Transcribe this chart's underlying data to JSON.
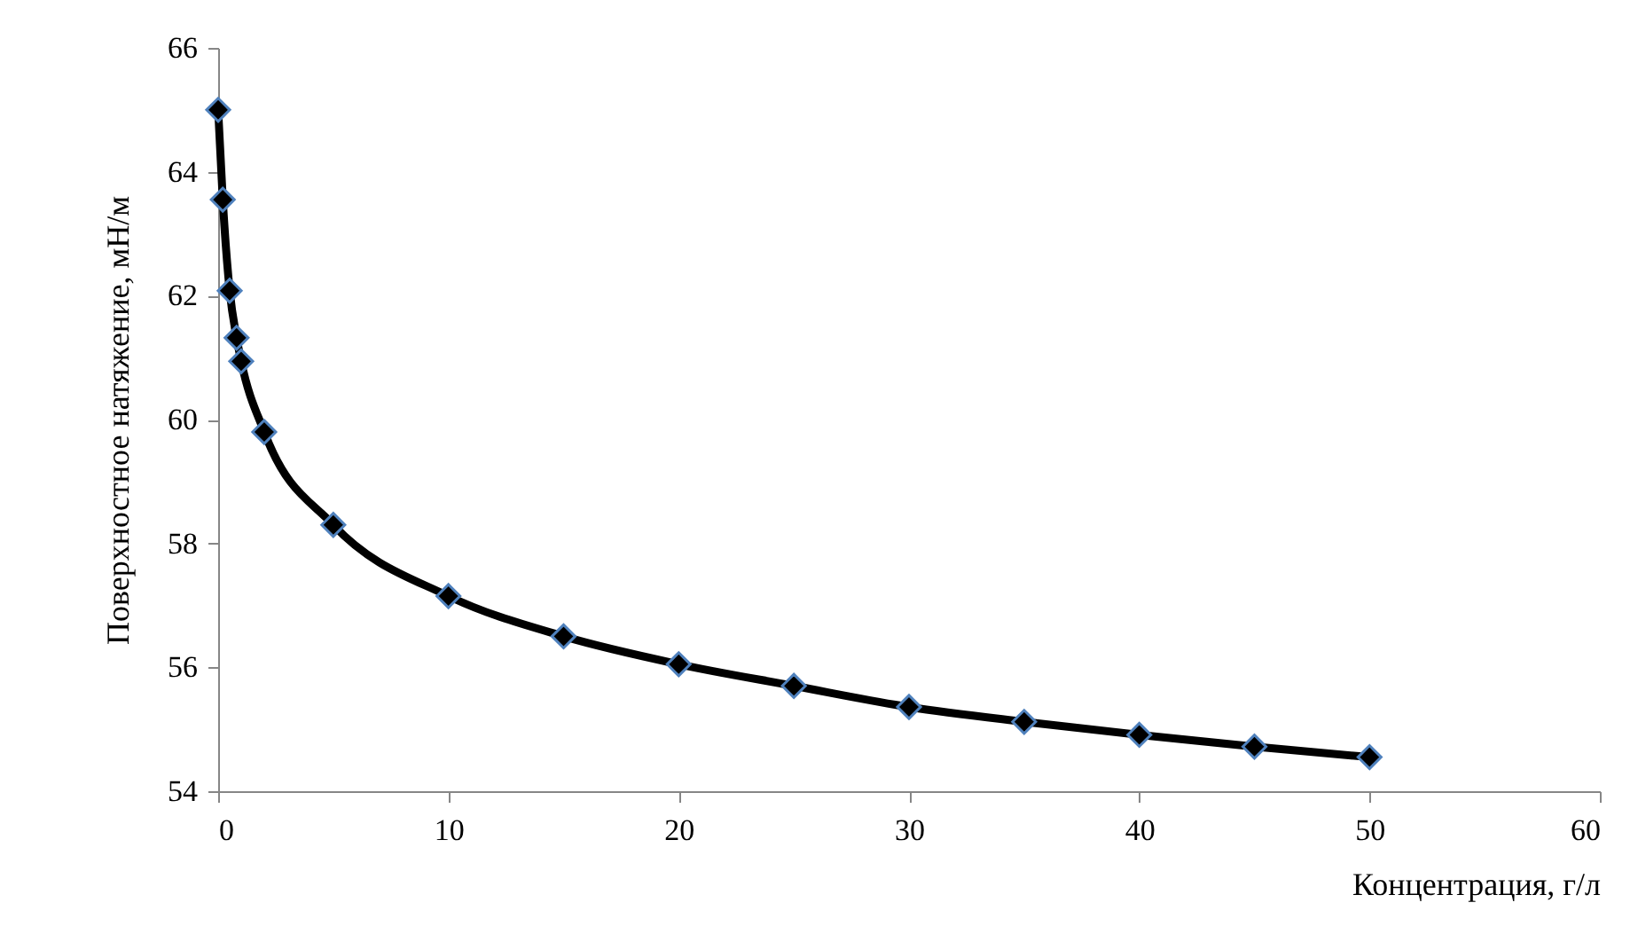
{
  "chart_data": {
    "type": "line",
    "xlabel": "Концентрация, г/л",
    "ylabel": "Поверхностное натяжение, мН/м",
    "series": [
      {
        "color": "#000000",
        "x": [
          0,
          0.2,
          0.5,
          0.8,
          1,
          2,
          5,
          10,
          15,
          20,
          25,
          30,
          35,
          40,
          45,
          50
        ],
        "values": [
          65.0,
          63.55,
          62.08,
          61.32,
          60.94,
          59.8,
          58.3,
          57.15,
          56.5,
          56.05,
          55.7,
          55.36,
          55.12,
          54.91,
          54.72,
          54.55
        ]
      }
    ],
    "xlim": [
      0,
      60
    ],
    "xticks": [
      0,
      10,
      20,
      30,
      40,
      50,
      60
    ],
    "ylim": [
      54,
      66
    ],
    "yticks": [
      54,
      56,
      58,
      60,
      62,
      64,
      66
    ],
    "grid": false,
    "marker": "diamond",
    "line_style": "solid"
  }
}
